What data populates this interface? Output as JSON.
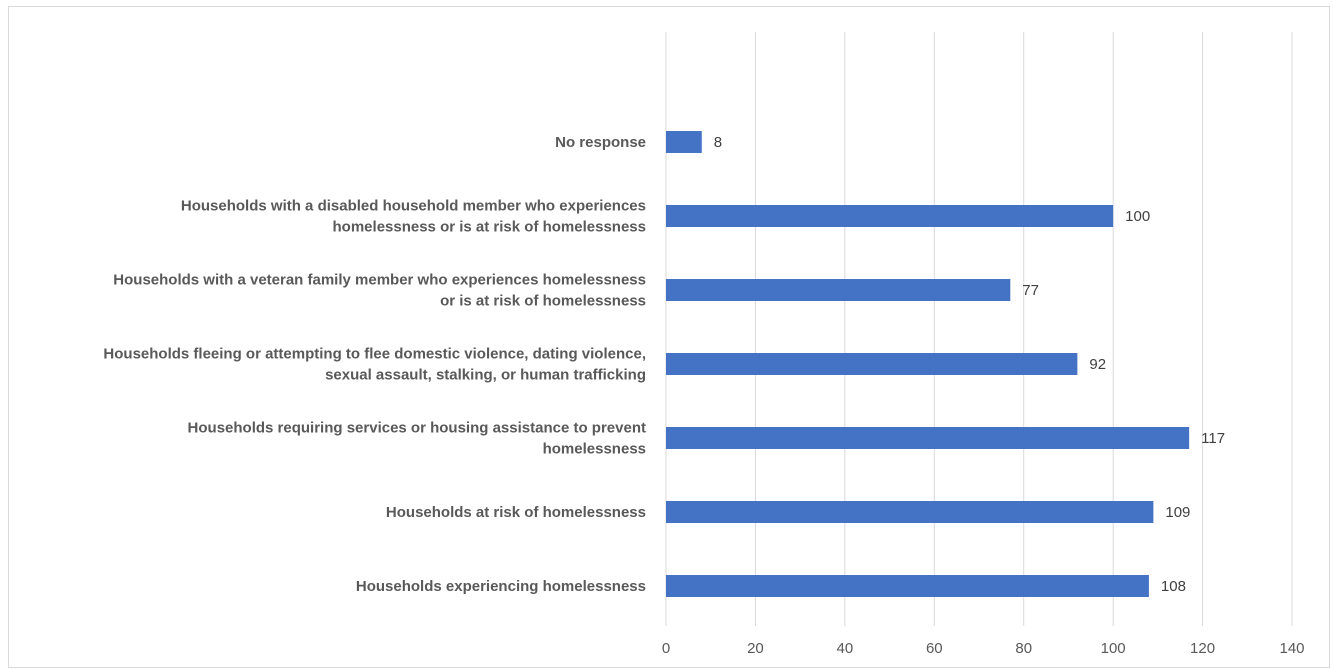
{
  "chart_data": {
    "type": "bar",
    "orientation": "horizontal",
    "title": "",
    "xlabel": "",
    "ylabel": "",
    "xlim": [
      0,
      140
    ],
    "x_ticks": [
      0,
      20,
      40,
      60,
      80,
      100,
      120,
      140
    ],
    "grid": "vertical",
    "legend": "none",
    "bar_color": "#4472C4",
    "categories": [
      [
        "No response"
      ],
      [
        "Households with a disabled household member who experiences",
        "homelessness or is at risk of homelessness"
      ],
      [
        "Households with a veteran family member who experiences homelessness",
        "or is at risk of homelessness"
      ],
      [
        "Households fleeing or attempting to flee domestic violence, dating violence,",
        "sexual assault, stalking, or human trafficking"
      ],
      [
        "Households requiring services or housing assistance to prevent",
        "homelessness"
      ],
      [
        "Households at risk of homelessness"
      ],
      [
        "Households experiencing homelessness"
      ]
    ],
    "values": [
      8,
      100,
      77,
      92,
      117,
      109,
      108
    ]
  }
}
